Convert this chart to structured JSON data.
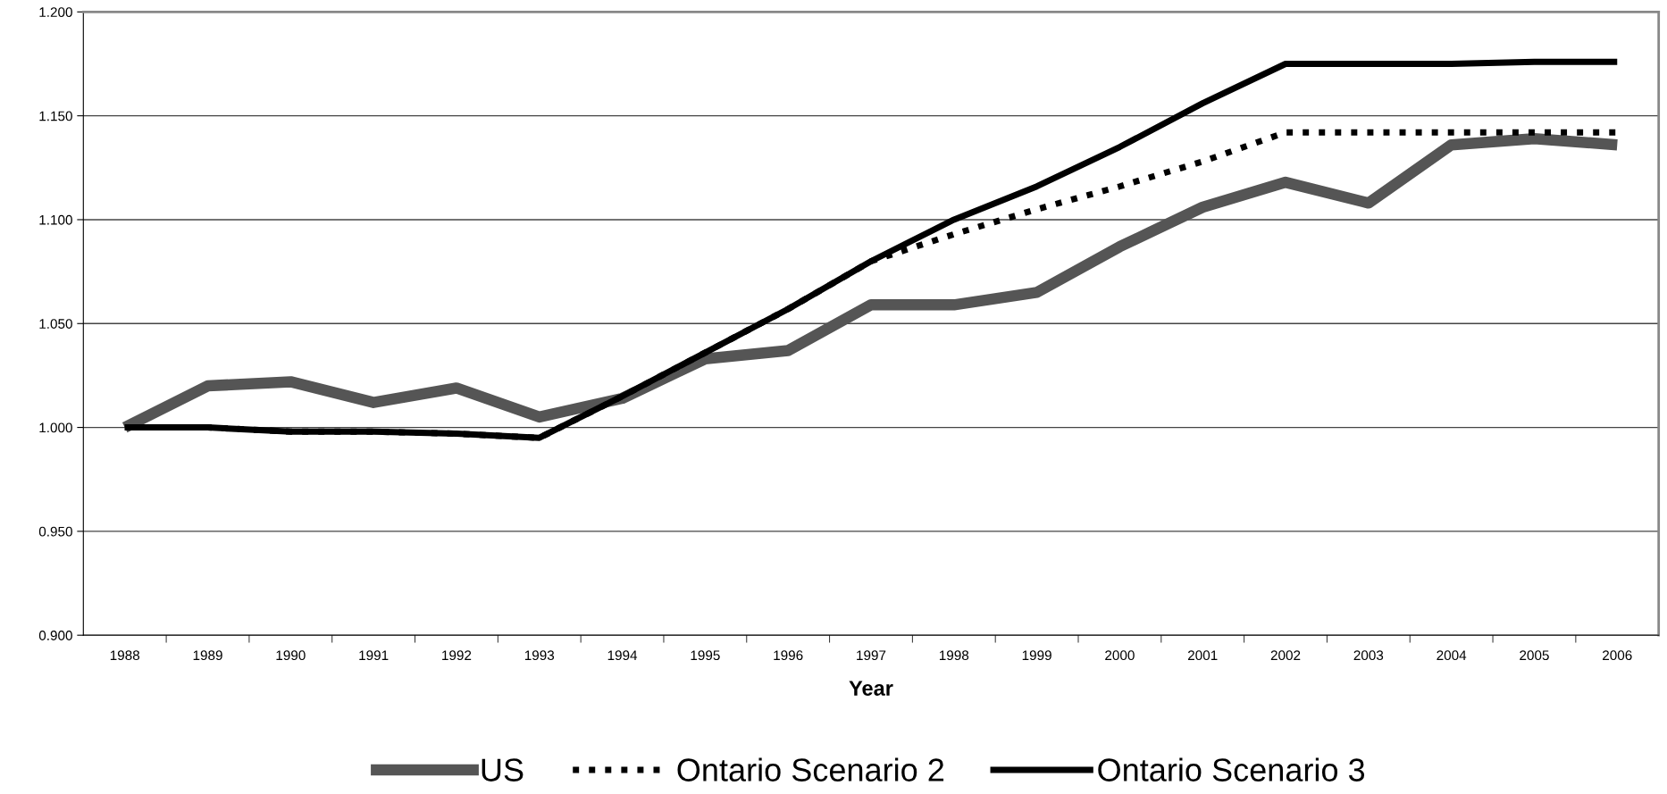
{
  "chart_data": {
    "type": "line",
    "xlabel": "Year",
    "categories": [
      "1988",
      "1989",
      "1990",
      "1991",
      "1992",
      "1993",
      "1994",
      "1995",
      "1996",
      "1997",
      "1998",
      "1999",
      "2000",
      "2001",
      "2002",
      "2003",
      "2004",
      "2005",
      "2006"
    ],
    "series": [
      {
        "name": "US",
        "color": "#555555",
        "line_style": "solid",
        "values": [
          1.0,
          1.02,
          1.022,
          1.012,
          1.019,
          1.005,
          1.014,
          1.033,
          1.037,
          1.059,
          1.059,
          1.065,
          1.087,
          1.106,
          1.118,
          1.108,
          1.136,
          1.139,
          1.136
        ]
      },
      {
        "name": "Ontario Scenario 2",
        "color": "#000000",
        "line_style": "dotted",
        "values": [
          1.0,
          1.0,
          0.998,
          0.998,
          0.997,
          0.995,
          1.015,
          1.036,
          1.057,
          1.08,
          1.093,
          1.105,
          1.116,
          1.128,
          1.142,
          1.142,
          1.142,
          1.142,
          1.142
        ]
      },
      {
        "name": "Ontario Scenario 3",
        "color": "#000000",
        "line_style": "solid",
        "values": [
          1.0,
          1.0,
          0.998,
          0.998,
          0.997,
          0.995,
          1.015,
          1.036,
          1.057,
          1.08,
          1.1,
          1.116,
          1.135,
          1.156,
          1.175,
          1.175,
          1.175,
          1.176,
          1.176
        ]
      }
    ],
    "ylim": [
      0.9,
      1.2
    ],
    "yticks": [
      {
        "value": 0.9,
        "label": "0.900"
      },
      {
        "value": 0.95,
        "label": "0.950"
      },
      {
        "value": 1.0,
        "label": "1.000"
      },
      {
        "value": 1.05,
        "label": "1.050"
      },
      {
        "value": 1.1,
        "label": "1.100"
      },
      {
        "value": 1.15,
        "label": "1.150"
      },
      {
        "value": 1.2,
        "label": "1.200"
      }
    ],
    "grid": "y",
    "legend": "bottom",
    "marker": "none"
  }
}
